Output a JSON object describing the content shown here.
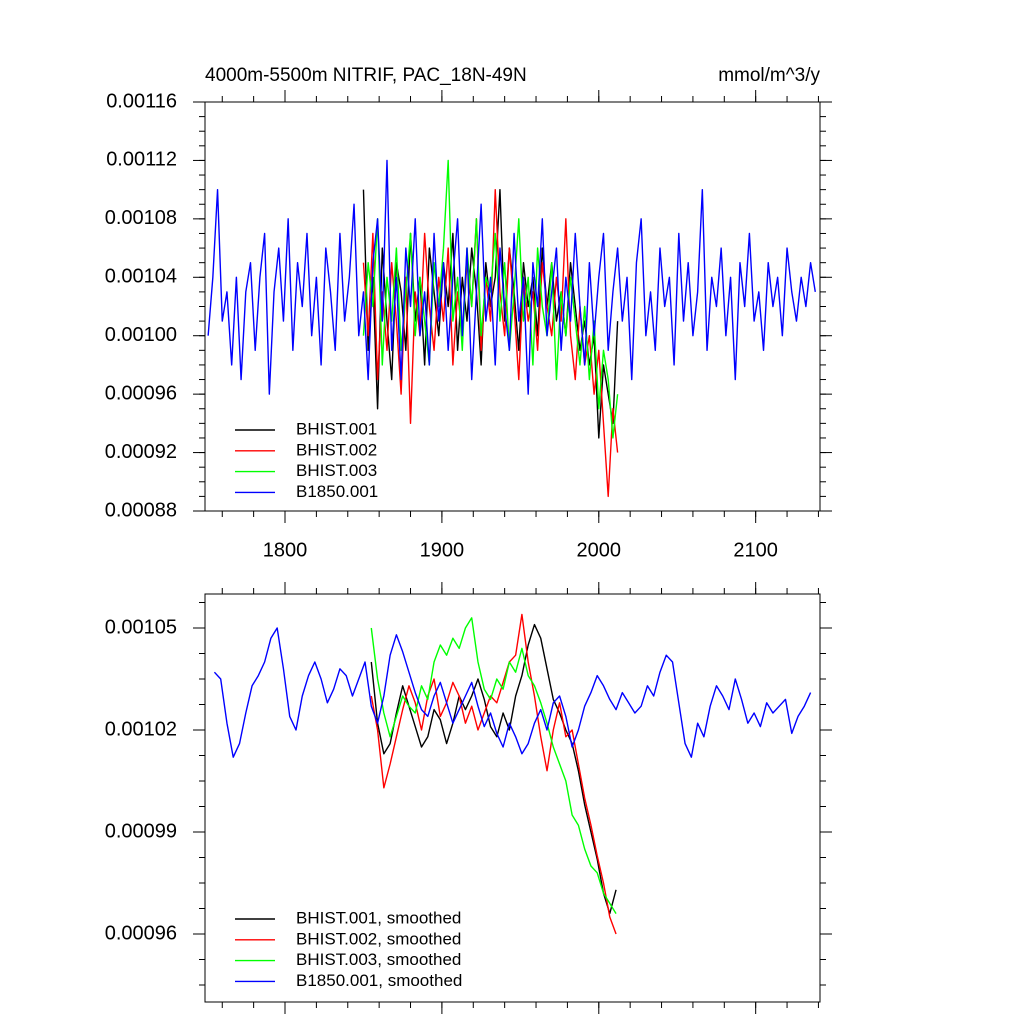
{
  "chart_data": [
    {
      "type": "line",
      "title": "4000m-5500m NITRIF, PAC_18N-49N",
      "units": "mmol/m^3/y",
      "xlim": [
        1749,
        2141
      ],
      "xticks": [
        1800,
        1900,
        2000,
        2100
      ],
      "show_xtick_labels": true,
      "ylim": [
        0.00088,
        0.00116
      ],
      "yticks": [
        0.00088,
        0.00092,
        0.00096,
        {
          "value": 0.001,
          "label": "0.00100"
        },
        0.00104,
        0.00108,
        0.00112,
        0.00116
      ],
      "legend": "lower left",
      "series": [
        {
          "name": "BHIST.001",
          "color": "#000000",
          "x_start": 1850,
          "x_step": 3,
          "values": [
            0.0011,
            0.00099,
            0.00104,
            0.00095,
            0.00106,
            0.00101,
            0.00097,
            0.00105,
            0.00103,
            0.00099,
            0.00107,
            0.00101,
            0.00104,
            0.00098,
            0.00106,
            0.00103,
            0.001,
            0.00105,
            0.00102,
            0.00107,
            0.00099,
            0.00104,
            0.00101,
            0.00106,
            0.00103,
            0.00098,
            0.00105,
            0.00102,
            0.00104,
            0.0011,
            0.00101,
            0.00106,
            0.00103,
            0.00099,
            0.00105,
            0.00102,
            0.00104,
            0.001,
            0.00106,
            0.00102,
            0.00105,
            0.00101,
            0.00103,
            0.001,
            0.00105,
            0.00102,
            0.00099,
            0.00101,
            0.00098,
            0.001,
            0.00093,
            0.00098,
            0.00096,
            0.00094,
            0.00101
          ]
        },
        {
          "name": "BHIST.002",
          "color": "#ff0000",
          "x_start": 1850,
          "x_step": 3,
          "values": [
            0.00105,
            0.001,
            0.00107,
            0.00097,
            0.00103,
            0.00099,
            0.00105,
            0.00101,
            0.00096,
            0.00104,
            0.00094,
            0.00103,
            0.001,
            0.00107,
            0.00102,
            0.00099,
            0.00104,
            0.00101,
            0.00106,
            0.00098,
            0.00103,
            0.001,
            0.00105,
            0.00102,
            0.00108,
            0.00099,
            0.00104,
            0.00101,
            0.0011,
            0.00103,
            0.001,
            0.00106,
            0.00102,
            0.00097,
            0.00104,
            0.00101,
            0.00103,
            0.00099,
            0.00105,
            0.00102,
            0.001,
            0.00104,
            0.00101,
            0.00108,
            0.001,
            0.00097,
            0.00102,
            0.00098,
            0.001,
            0.00096,
            0.00099,
            0.00094,
            0.00089,
            0.00095,
            0.00092
          ]
        },
        {
          "name": "BHIST.003",
          "color": "#00ff00",
          "x_start": 1850,
          "x_step": 3,
          "values": [
            0.001,
            0.00105,
            0.00102,
            0.00108,
            0.00098,
            0.00104,
            0.00101,
            0.00106,
            0.00099,
            0.00103,
            0.00107,
            0.001,
            0.00104,
            0.00101,
            0.00098,
            0.00105,
            0.00102,
            0.00106,
            0.00112,
            0.00101,
            0.00104,
            0.00099,
            0.00106,
            0.00102,
            0.00108,
            0.001,
            0.00104,
            0.00103,
            0.00107,
            0.00101,
            0.00105,
            0.00099,
            0.00103,
            0.00108,
            0.00101,
            0.00104,
            0.00098,
            0.00106,
            0.00102,
            0.001,
            0.00105,
            0.00097,
            0.00103,
            0.001,
            0.00104,
            0.00101,
            0.00098,
            0.00102,
            0.00097,
            0.00101,
            0.00095,
            0.00099,
            0.00097,
            0.00093,
            0.00096
          ]
        },
        {
          "name": "B1850.001",
          "color": "#0000ff",
          "x_start": 1751,
          "x_step": 3,
          "values": [
            0.001,
            0.00104,
            0.0011,
            0.00101,
            0.00103,
            0.00098,
            0.00104,
            0.00097,
            0.00103,
            0.00105,
            0.00099,
            0.00104,
            0.00107,
            0.00096,
            0.00103,
            0.00106,
            0.00101,
            0.00108,
            0.00099,
            0.00105,
            0.00102,
            0.00107,
            0.001,
            0.00104,
            0.00098,
            0.00106,
            0.00103,
            0.00099,
            0.00107,
            0.00101,
            0.00104,
            0.00109,
            0.001,
            0.00103,
            0.00097,
            0.00105,
            0.00108,
            0.00101,
            0.00112,
            0.00099,
            0.00104,
            0.00097,
            0.00106,
            0.00102,
            0.00108,
            0.001,
            0.00103,
            0.00098,
            0.00107,
            0.00101,
            0.00105,
            0.00099,
            0.00104,
            0.00108,
            0.001,
            0.00106,
            0.00097,
            0.00103,
            0.00109,
            0.00101,
            0.00104,
            0.00098,
            0.00106,
            0.00102,
            0.00099,
            0.00107,
            0.00101,
            0.00104,
            0.00096,
            0.00105,
            0.00102,
            0.00108,
            0.001,
            0.00103,
            0.00106,
            0.00099,
            0.00104,
            0.00101,
            0.00107,
            0.00102,
            0.00098,
            0.00105,
            0.001,
            0.00104,
            0.00107,
            0.00099,
            0.00103,
            0.00106,
            0.00101,
            0.00104,
            0.00097,
            0.00105,
            0.00108,
            0.001,
            0.00103,
            0.00099,
            0.00106,
            0.00102,
            0.00104,
            0.00098,
            0.00107,
            0.00101,
            0.00105,
            0.001,
            0.00103,
            0.0011,
            0.00099,
            0.00104,
            0.00102,
            0.00106,
            0.001,
            0.00104,
            0.00097,
            0.00105,
            0.00102,
            0.00107,
            0.00101,
            0.00103,
            0.00099,
            0.00105,
            0.00102,
            0.00104,
            0.001,
            0.00106,
            0.00103,
            0.00101,
            0.00104,
            0.00102,
            0.00105,
            0.00103
          ]
        }
      ]
    },
    {
      "type": "line",
      "xlim": [
        1749,
        2141
      ],
      "xticks": [
        1800,
        1900,
        2000,
        2100
      ],
      "show_xtick_labels": false,
      "ylim": [
        0.00094,
        0.00106
      ],
      "yticks": [
        0.00096,
        0.00099,
        0.00102,
        0.00105
      ],
      "legend": "lower left",
      "series": [
        {
          "name": "BHIST.001, smoothed",
          "color": "#000000",
          "x_start": 1855,
          "x_step": 4,
          "values": [
            0.00104,
            0.001022,
            0.001013,
            0.001016,
            0.001025,
            0.001033,
            0.001027,
            0.001021,
            0.001015,
            0.001018,
            0.001026,
            0.001023,
            0.001016,
            0.001022,
            0.00103,
            0.001026,
            0.00103,
            0.001035,
            0.001029,
            0.001021,
            0.001018,
            0.001025,
            0.00102,
            0.00103,
            0.001036,
            0.001045,
            0.001051,
            0.001047,
            0.001038,
            0.001029,
            0.001025,
            0.00102,
            0.001016,
            0.001008,
            0.000998,
            0.00099,
            0.000982,
            0.000972,
            0.000966,
            0.000973
          ]
        },
        {
          "name": "BHIST.002, smoothed",
          "color": "#ff0000",
          "x_start": 1855,
          "x_step": 4,
          "values": [
            0.00103,
            0.00102,
            0.001003,
            0.00101,
            0.001018,
            0.001026,
            0.001033,
            0.001028,
            0.00102,
            0.00103,
            0.001035,
            0.001024,
            0.001028,
            0.001034,
            0.00103,
            0.001022,
            0.001027,
            0.00102,
            0.001025,
            0.00103,
            0.001028,
            0.001034,
            0.00104,
            0.001042,
            0.001054,
            0.00104,
            0.00103,
            0.001018,
            0.001008,
            0.00102,
            0.001028,
            0.001018,
            0.00102,
            0.00101,
            0.001,
            0.000992,
            0.000983,
            0.000975,
            0.000965,
            0.00096
          ]
        },
        {
          "name": "BHIST.003, smoothed",
          "color": "#00ff00",
          "x_start": 1855,
          "x_step": 4,
          "values": [
            0.00105,
            0.001035,
            0.001025,
            0.001018,
            0.001024,
            0.00103,
            0.001027,
            0.001025,
            0.001033,
            0.001029,
            0.00104,
            0.001045,
            0.001042,
            0.001047,
            0.001044,
            0.00105,
            0.001053,
            0.00104,
            0.001032,
            0.001029,
            0.001035,
            0.001032,
            0.00104,
            0.001037,
            0.001044,
            0.001036,
            0.001033,
            0.001028,
            0.001022,
            0.001015,
            0.00101,
            0.001005,
            0.000995,
            0.000992,
            0.000985,
            0.00098,
            0.000978,
            0.000972,
            0.000969,
            0.000966
          ]
        },
        {
          "name": "B1850.001, smoothed",
          "color": "#0000ff",
          "x_start": 1755,
          "x_step": 4,
          "values": [
            0.001037,
            0.001035,
            0.001022,
            0.001012,
            0.001016,
            0.001025,
            0.001033,
            0.001036,
            0.00104,
            0.001047,
            0.00105,
            0.001038,
            0.001024,
            0.00102,
            0.00103,
            0.001036,
            0.00104,
            0.001035,
            0.001028,
            0.001032,
            0.001038,
            0.001036,
            0.00103,
            0.001035,
            0.00104,
            0.001027,
            0.001022,
            0.00103,
            0.001042,
            0.001048,
            0.001043,
            0.001037,
            0.001031,
            0.001026,
            0.001024,
            0.00103,
            0.001034,
            0.001028,
            0.001022,
            0.001026,
            0.00103,
            0.001034,
            0.001027,
            0.001021,
            0.001025,
            0.001019,
            0.001015,
            0.001022,
            0.001018,
            0.001013,
            0.001016,
            0.001022,
            0.001026,
            0.00102,
            0.001028,
            0.00103,
            0.001024,
            0.001015,
            0.00102,
            0.001027,
            0.001031,
            0.001036,
            0.001033,
            0.001029,
            0.001026,
            0.001031,
            0.001028,
            0.001025,
            0.001027,
            0.001033,
            0.00103,
            0.001037,
            0.001042,
            0.00104,
            0.001028,
            0.001016,
            0.001012,
            0.001022,
            0.001018,
            0.001027,
            0.001033,
            0.00103,
            0.001026,
            0.001035,
            0.001029,
            0.001022,
            0.001025,
            0.001021,
            0.001028,
            0.001025,
            0.001027,
            0.001029,
            0.001019,
            0.001024,
            0.001027,
            0.001031
          ]
        }
      ]
    }
  ]
}
